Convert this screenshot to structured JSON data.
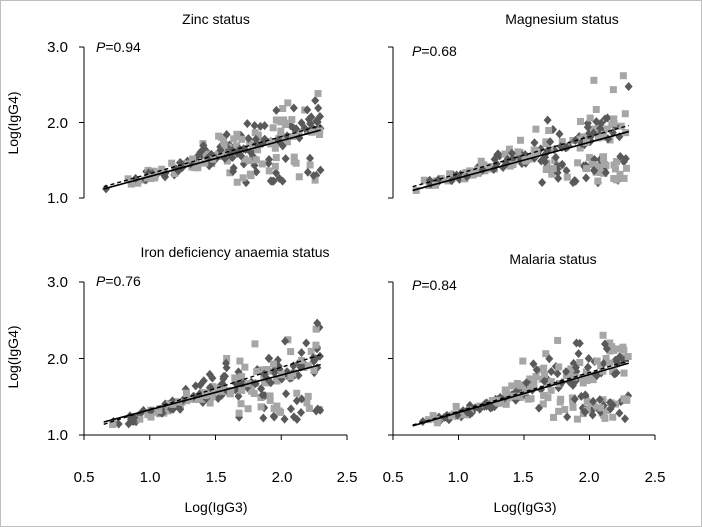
{
  "figure": {
    "xlabel": "Log(IgG3)",
    "ylabel": "Log(IgG4)",
    "xticks": [
      "0.5",
      "1.0",
      "1.5",
      "2.0",
      "2.5"
    ],
    "yticks": [
      "1.0",
      "2.0",
      "3.0"
    ]
  },
  "chart_data": [
    {
      "type": "scatter",
      "title": "Zinc status",
      "annotation": "P=0.94",
      "annotation_italic": "P",
      "annotation_value": "=0.94",
      "xlabel": "",
      "ylabel": "Log(IgG4)",
      "xlim": [
        0.5,
        2.5
      ],
      "ylim": [
        1.0,
        3.0
      ],
      "series_colors": {
        "squares": "#a6a6a6",
        "diamonds": "#595959"
      },
      "seed": 11,
      "fit_lines": [
        {
          "style": "solid",
          "x": [
            0.65,
            2.3
          ],
          "y": [
            1.12,
            1.9
          ]
        },
        {
          "style": "dashed",
          "x": [
            0.65,
            2.3
          ],
          "y": [
            1.15,
            1.96
          ]
        }
      ]
    },
    {
      "type": "scatter",
      "title": "Magnesium status",
      "annotation": "P=0.68",
      "annotation_italic": "P",
      "annotation_value": "=0.68",
      "xlabel": "",
      "ylabel": "",
      "xlim": [
        0.5,
        2.5
      ],
      "ylim": [
        1.0,
        3.0
      ],
      "series_colors": {
        "squares": "#a6a6a6",
        "diamonds": "#595959"
      },
      "seed": 23,
      "fit_lines": [
        {
          "style": "solid",
          "x": [
            0.65,
            2.3
          ],
          "y": [
            1.1,
            1.88
          ]
        },
        {
          "style": "dashed",
          "x": [
            0.65,
            2.3
          ],
          "y": [
            1.15,
            1.96
          ]
        }
      ]
    },
    {
      "type": "scatter",
      "title": "Iron deficiency anaemia status",
      "annotation": "P=0.76",
      "annotation_italic": "P",
      "annotation_value": "=0.76",
      "xlabel": "Log(IgG3)",
      "ylabel": "Log(IgG4)",
      "xlim": [
        0.5,
        2.5
      ],
      "ylim": [
        1.0,
        3.0
      ],
      "series_colors": {
        "squares": "#a6a6a6",
        "diamonds": "#595959"
      },
      "seed": 37,
      "fit_lines": [
        {
          "style": "solid",
          "x": [
            0.65,
            2.3
          ],
          "y": [
            1.17,
            1.92
          ]
        },
        {
          "style": "dashed",
          "x": [
            0.65,
            2.3
          ],
          "y": [
            1.14,
            2.05
          ]
        }
      ]
    },
    {
      "type": "scatter",
      "title": "Malaria status",
      "annotation": "P=0.84",
      "annotation_italic": "P",
      "annotation_value": "=0.84",
      "xlabel": "Log(IgG3)",
      "ylabel": "",
      "xlim": [
        0.5,
        2.5
      ],
      "ylim": [
        1.0,
        3.0
      ],
      "series_colors": {
        "squares": "#a6a6a6",
        "diamonds": "#595959"
      },
      "seed": 53,
      "fit_lines": [
        {
          "style": "solid",
          "x": [
            0.65,
            2.3
          ],
          "y": [
            1.12,
            1.94
          ]
        },
        {
          "style": "dashed",
          "x": [
            0.65,
            2.3
          ],
          "y": [
            1.13,
            1.97
          ]
        }
      ]
    }
  ]
}
